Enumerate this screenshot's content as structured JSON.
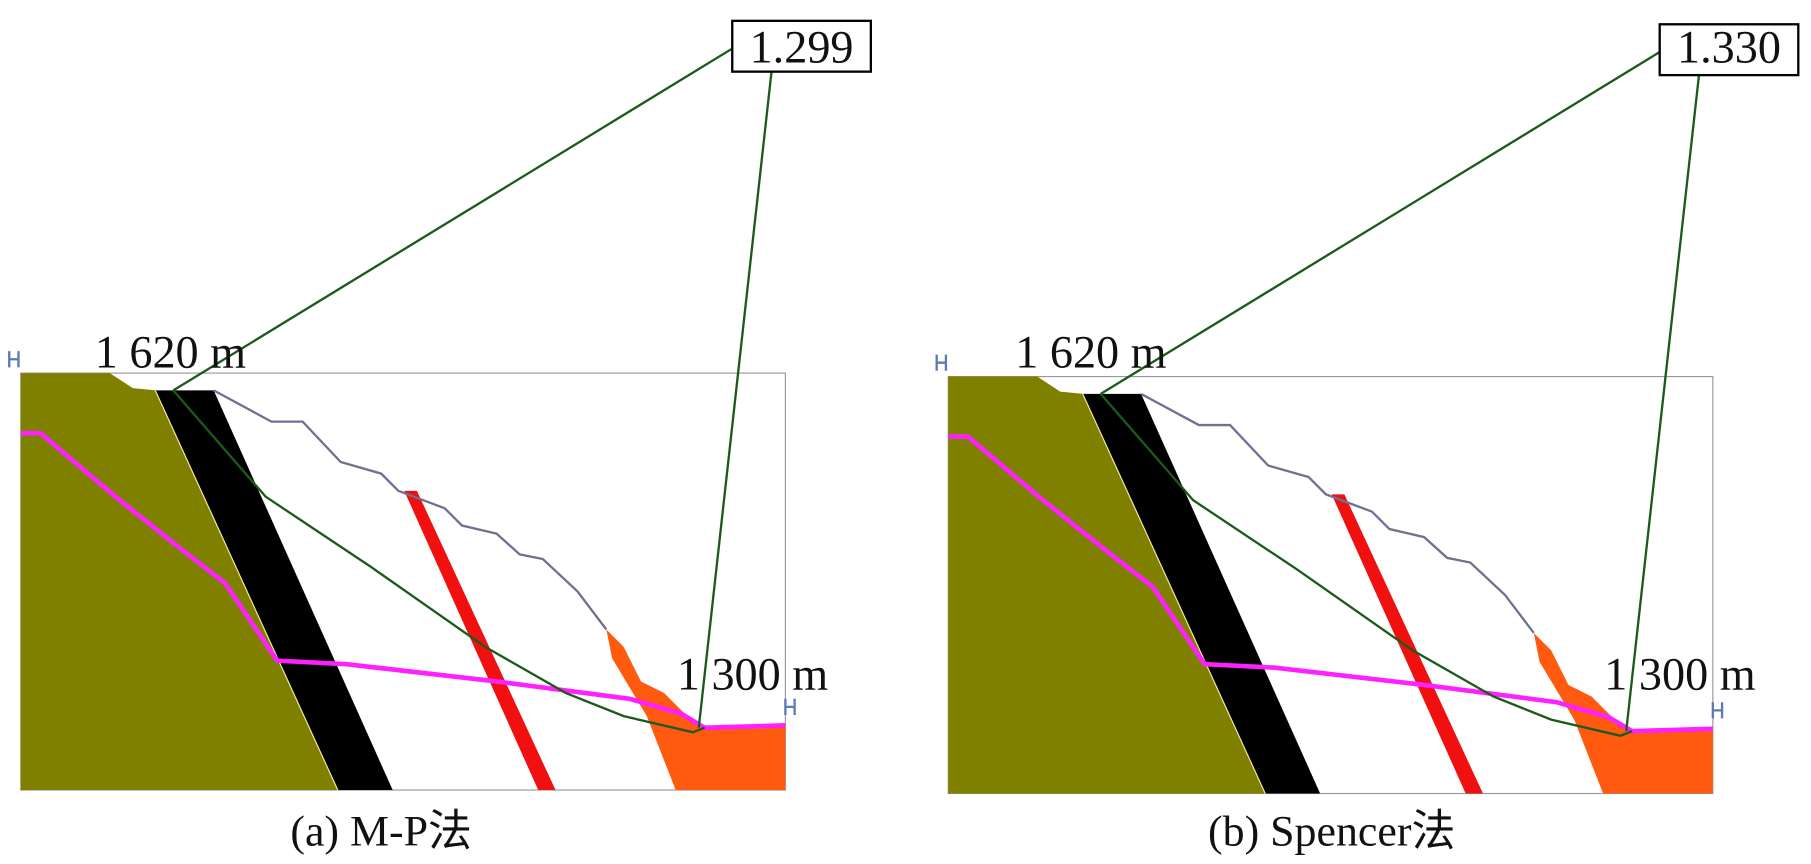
{
  "panels": [
    {
      "factor": "1.299",
      "top_elevation": "1 620 m",
      "toe_elevation": "1 300 m",
      "caption": "(a) M-P法"
    },
    {
      "factor": "1.330",
      "top_elevation": "1 620 m",
      "toe_elevation": "1 300 m",
      "caption": "(b) Spencer法"
    }
  ]
}
